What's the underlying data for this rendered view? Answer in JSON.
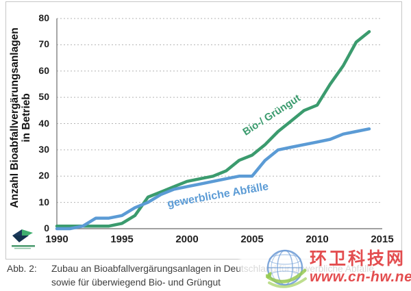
{
  "chart_data": {
    "type": "line",
    "title": "",
    "ylabel_line1": "Anzahl Bioabfallvergärungsanlagen",
    "ylabel_line2": "in Betrieb",
    "xlabel": "",
    "xlim": [
      1990,
      2015
    ],
    "ylim": [
      0,
      80
    ],
    "x_ticks": [
      1990,
      1995,
      2000,
      2005,
      2010,
      2015
    ],
    "y_ticks": [
      0,
      10,
      20,
      30,
      40,
      50,
      60,
      70,
      80
    ],
    "grid": "horizontal-dotted",
    "legend_position": "inline-labels-on-lines",
    "x": [
      1990,
      1991,
      1992,
      1993,
      1994,
      1995,
      1996,
      1997,
      1998,
      1999,
      2000,
      2001,
      2002,
      2003,
      2004,
      2005,
      2006,
      2007,
      2008,
      2009,
      2010,
      2011,
      2012,
      2013,
      2014
    ],
    "series": [
      {
        "name": "Bio-/ Grüngut",
        "color": "#3b9b6e",
        "values": [
          1,
          1,
          1,
          1,
          1,
          2,
          5,
          12,
          14,
          16,
          18,
          19,
          20,
          22,
          26,
          28,
          32,
          37,
          41,
          45,
          47,
          55,
          62,
          71,
          75
        ]
      },
      {
        "name": "gewerbliche Abfälle",
        "color": "#5b9bd5",
        "values": [
          0,
          0,
          1,
          4,
          4,
          5,
          8,
          10,
          13,
          15,
          16,
          17,
          18,
          19,
          20,
          20,
          26,
          30,
          31,
          32,
          33,
          34,
          36,
          37,
          38
        ]
      }
    ]
  },
  "caption": {
    "label": "Abb. 2:",
    "line1": "Zubau an Bioabfallvergärungsanlagen in Deutschland für gewerbliche Abfälle",
    "line2": "sowie für überwiegend Bio- und Grüngut"
  },
  "watermark": {
    "site_name": "环卫科技网",
    "site_url": "www.cn-hw.net",
    "color": "#e13a3c"
  }
}
